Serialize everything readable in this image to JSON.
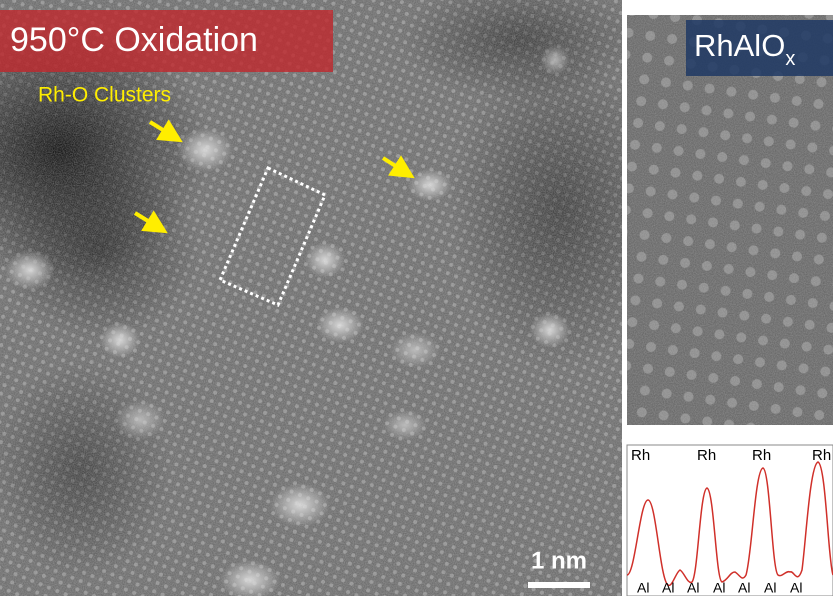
{
  "left_panel": {
    "title": "950°C Oxidation",
    "annotation": "Rh-O Clusters",
    "scale_bar": "1 nm"
  },
  "right_panel": {
    "title": "RhAlO",
    "title_subscript": "x",
    "profile": {
      "top_labels": [
        "Rh",
        "Rh",
        "Rh",
        "Rh"
      ],
      "bottom_labels": [
        "Al",
        "Al",
        "Al",
        "Al",
        "Al",
        "Al",
        "Al"
      ]
    }
  }
}
